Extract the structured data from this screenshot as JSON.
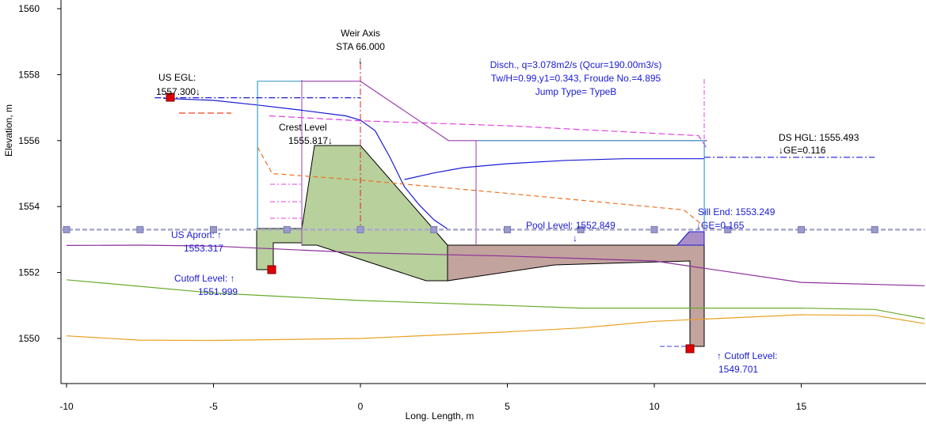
{
  "chart_data": {
    "type": "line",
    "xlabel": "Long. Length, m",
    "ylabel": "Elevation, m",
    "xlim": [
      -10.2,
      19.2
    ],
    "ylim": [
      1548.8,
      1560.2
    ],
    "xticks": [
      -10,
      -5,
      0,
      5,
      10,
      15
    ],
    "yticks": [
      1550,
      1552,
      1554,
      1556,
      1558,
      1560
    ],
    "grid": false,
    "series": [
      {
        "key": "ground_purple",
        "color": "#8b2f99",
        "points": [
          [
            -10,
            1552.82
          ],
          [
            -7.5,
            1552.83
          ],
          [
            -5,
            1552.8
          ],
          [
            0,
            1552.6
          ],
          [
            5,
            1552.5
          ],
          [
            10,
            1552.35
          ],
          [
            15,
            1551.7
          ],
          [
            19.2,
            1551.6
          ]
        ]
      },
      {
        "key": "ground_green",
        "color": "#6aaa2a",
        "points": [
          [
            -10,
            1551.78
          ],
          [
            -7.5,
            1551.58
          ],
          [
            -5,
            1551.38
          ],
          [
            0,
            1551.15
          ],
          [
            5,
            1551.0
          ],
          [
            7.5,
            1550.92
          ],
          [
            10,
            1550.92
          ],
          [
            15,
            1550.92
          ],
          [
            17.5,
            1550.88
          ],
          [
            19.2,
            1550.6
          ]
        ]
      },
      {
        "key": "ground_orange",
        "color": "#e8a020",
        "points": [
          [
            -10,
            1550.08
          ],
          [
            -7.5,
            1549.95
          ],
          [
            -5,
            1549.94
          ],
          [
            0,
            1550.0
          ],
          [
            5,
            1550.2
          ],
          [
            7.5,
            1550.32
          ],
          [
            10,
            1550.52
          ],
          [
            15,
            1550.72
          ],
          [
            17.5,
            1550.7
          ],
          [
            19.2,
            1550.45
          ]
        ]
      },
      {
        "key": "water_surface",
        "color": "#1a1ad6",
        "points": [
          [
            -6.7,
            1557.28
          ],
          [
            -5,
            1557.22
          ],
          [
            -3.5,
            1557.08
          ],
          [
            -2,
            1556.92
          ],
          [
            -0.5,
            1556.75
          ],
          [
            0,
            1556.62
          ],
          [
            0.5,
            1556.3
          ],
          [
            1,
            1555.5
          ],
          [
            1.5,
            1554.6
          ],
          [
            2,
            1554.05
          ],
          [
            2.5,
            1553.6
          ],
          [
            3,
            1553.3
          ]
        ]
      },
      {
        "key": "jump_surface",
        "color": "#1a1ad6",
        "points": [
          [
            1.5,
            1554.82
          ],
          [
            2.5,
            1555.02
          ],
          [
            3.5,
            1555.18
          ],
          [
            5,
            1555.3
          ],
          [
            7,
            1555.4
          ],
          [
            9,
            1555.45
          ],
          [
            11.7,
            1555.45
          ]
        ]
      },
      {
        "key": "hgl_orange_dashed",
        "color": "#f07020",
        "points": [
          [
            -3.5,
            1555.8
          ],
          [
            -3,
            1555.0
          ],
          [
            0,
            1554.8
          ],
          [
            5,
            1554.4
          ],
          [
            11,
            1553.9
          ],
          [
            11.7,
            1553.4
          ]
        ]
      },
      {
        "key": "egl_magenta_dashed",
        "color": "#e040e0",
        "points": [
          [
            -3.1,
            1556.75
          ],
          [
            0,
            1556.6
          ],
          [
            5,
            1556.45
          ],
          [
            11.5,
            1556.15
          ],
          [
            11.8,
            1555.75
          ]
        ]
      },
      {
        "key": "weir_outline",
        "color": "#9b3fb0",
        "points": [
          [
            -2,
            1557.8
          ],
          [
            0,
            1557.8
          ],
          [
            3,
            1556.0
          ],
          [
            11.8,
            1556.0
          ]
        ]
      },
      {
        "key": "us_extent",
        "color": "#40a0c8",
        "points": [
          [
            -3.5,
            1553.3
          ],
          [
            -3.5,
            1557.8
          ],
          [
            -2,
            1557.8
          ]
        ]
      },
      {
        "key": "ds_extent",
        "color": "#40a0c8",
        "points": [
          [
            4,
            1556.0
          ],
          [
            11.7,
            1556.0
          ],
          [
            11.7,
            1553.3
          ]
        ]
      }
    ],
    "reference_lines": [
      {
        "key": "us_egl_line",
        "color": "#1a1ad6",
        "y": 1557.3,
        "x_from": -7,
        "x_to": 0,
        "style": "dash-dot"
      },
      {
        "key": "ds_hgl_line",
        "color": "#1a1ad6",
        "y": 1555.493,
        "x_from": 11.7,
        "x_to": 17.5,
        "style": "dash-dot"
      },
      {
        "key": "pool_level_line",
        "color": "#aaaacc",
        "y": 1553.3,
        "x_from": -10.2,
        "x_to": 19.2,
        "style": "dashed-markers",
        "markers_x": [
          -10,
          -7.5,
          -5,
          -2.5,
          0,
          2.5,
          5,
          7.5,
          10,
          12.5,
          15,
          17.5
        ]
      }
    ],
    "annotations": {
      "weir_axis": {
        "title": "Weir Axis",
        "value": "STA 66.000",
        "x": 0
      },
      "us_egl": {
        "title": "US EGL:",
        "value": "1557.300↓"
      },
      "crest_level": {
        "title": "Crest Level",
        "value": "1555.817↓"
      },
      "discharge": {
        "line1": "Disch., q=3.078m2/s (Qcur=190.00m3/s)",
        "line2": "Tw/H=0.99,y1=0.343, Froude No.=4.895",
        "line3": "Jump Type= TypeB"
      },
      "ds_hgl": {
        "title": "DS HGL: 1555.493",
        "value": "↓GE=0.116"
      },
      "sill_end": {
        "title": "Sill End: 1553.249",
        "value": "↓GE=0.165"
      },
      "pool_level": {
        "title": "Pool Level: 1552.849",
        "arrow": "↓"
      },
      "us_apron": {
        "title": "US Apron: ↑",
        "value": "1553.317"
      },
      "cutoff_us": {
        "title": "Cutoff Level: ↑",
        "value": "1551.999"
      },
      "cutoff_ds": {
        "title": "↑ Cutoff Level:",
        "value": "1549.701"
      }
    }
  }
}
